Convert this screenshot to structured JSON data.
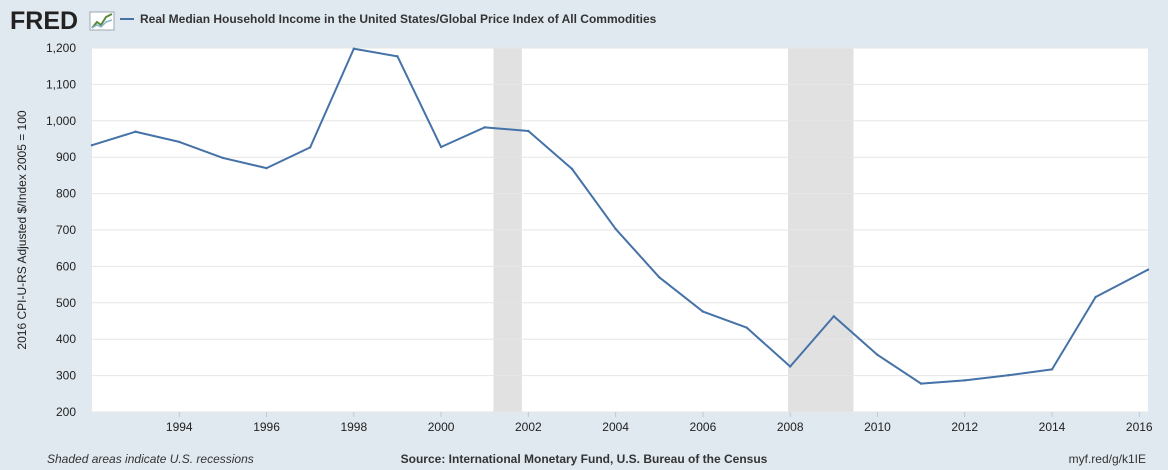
{
  "header": {
    "logo": "FRED",
    "legend_label": "Real Median Household Income in the United States/Global Price Index of All Commodities"
  },
  "footer": {
    "recession_note": "Shaded areas indicate U.S. recessions",
    "source": "Source: International Monetary Fund, U.S. Bureau of the Census",
    "short_url": "myf.red/g/k1IE"
  },
  "colors": {
    "background": "#e1e9f0",
    "plot_background": "#ffffff",
    "line": "#4572a7",
    "recession": "#e1e1e1",
    "grid": "#e6e6e6"
  },
  "chart_data": {
    "type": "line",
    "title": "",
    "ylabel": "2016 CPI-U-RS Adjusted $/Index 2005 = 100",
    "xlabel": "",
    "xlim": [
      1992,
      2016.2
    ],
    "ylim": [
      200,
      1200
    ],
    "x_ticks": [
      "1994",
      "1996",
      "1998",
      "2000",
      "2002",
      "2004",
      "2006",
      "2008",
      "2010",
      "2012",
      "2014",
      "2016"
    ],
    "y_ticks": [
      "200",
      "300",
      "400",
      "500",
      "600",
      "700",
      "800",
      "900",
      "1,000",
      "1,100",
      "1,200"
    ],
    "grid": true,
    "legend_position": "top-left",
    "recessions": [
      [
        2001.2,
        2001.85
      ],
      [
        2007.95,
        2009.45
      ]
    ],
    "series": [
      {
        "name": "Real Median Household Income in the United States/Global Price Index of All Commodities",
        "x": [
          1992,
          1993,
          1994,
          1995,
          1996,
          1997,
          1998,
          1999,
          2000,
          2001,
          2002,
          2003,
          2004,
          2005,
          2006,
          2007,
          2008,
          2009,
          2010,
          2011,
          2012,
          2013,
          2014,
          2015,
          2016.2
        ],
        "y": [
          933,
          970,
          942,
          898,
          870,
          927,
          1198,
          1177,
          928,
          982,
          972,
          868,
          703,
          570,
          476,
          432,
          325,
          463,
          357,
          278,
          287,
          301,
          317,
          516,
          591
        ]
      }
    ]
  }
}
